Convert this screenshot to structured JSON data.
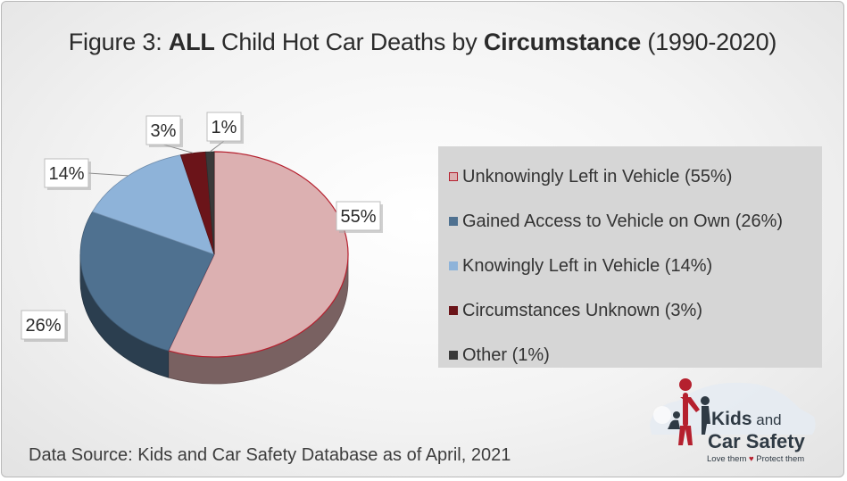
{
  "title": {
    "prefix": "Figure 3: ",
    "bold1": "ALL",
    "middle": " Child Hot Car Deaths by ",
    "bold2": "Circumstance",
    "suffix": " (1990-2020)"
  },
  "chart_data": {
    "type": "pie",
    "title": "Figure 3: ALL Child Hot Car Deaths by Circumstance (1990-2020)",
    "slices": [
      {
        "label": "Unknowingly Left in Vehicle (55%)",
        "value": 55,
        "data_label": "55%",
        "color": "#dcb0b1"
      },
      {
        "label": "Gained Access to Vehicle on Own (26%)",
        "value": 26,
        "data_label": "26%",
        "color": "#4f7190"
      },
      {
        "label": "Knowingly Left in Vehicle (14%)",
        "value": 14,
        "data_label": "14%",
        "color": "#8eb3d9"
      },
      {
        "label": "Circumstances Unknown (3%)",
        "value": 3,
        "data_label": "3%",
        "color": "#6b1419"
      },
      {
        "label": "Other (1%)",
        "value": 1,
        "data_label": "1%",
        "color": "#3a3a3a"
      }
    ],
    "legend_position": "right"
  },
  "source": "Data Source: Kids and Car Safety Database as of April, 2021",
  "logo": {
    "line1": "Kids",
    "line1_small": " and",
    "line2": "Car Safety",
    "tag_left": "Love them ",
    "tag_heart": "♥",
    "tag_right": " Protect them"
  }
}
